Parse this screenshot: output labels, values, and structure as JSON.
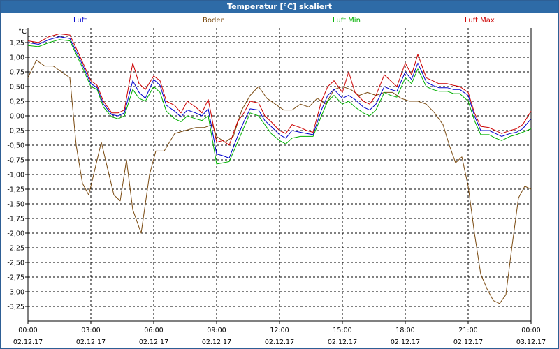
{
  "window": {
    "title": "Temperatur [°C] skaliert"
  },
  "colors": {
    "luft": "#0000cc",
    "boden": "#7a4a10",
    "luft_min": "#00b000",
    "luft_max": "#cc0000",
    "grid": "#000000",
    "title_bg": "#2e6ba7"
  },
  "chart_data": {
    "type": "line",
    "title": "Temperatur [°C] skaliert",
    "ylabel": "°C",
    "xlabel": "",
    "ylim": [
      -3.5,
      1.5
    ],
    "xlim": [
      0,
      24
    ],
    "grid": true,
    "legend_position": "top",
    "y_ticks": [
      1.25,
      1.0,
      0.75,
      0.5,
      0.25,
      0.0,
      -0.25,
      -0.5,
      -0.75,
      -1.0,
      -1.25,
      -1.5,
      -1.75,
      -2.0,
      -2.25,
      -2.5,
      -2.75,
      -3.0,
      -3.25
    ],
    "y_tick_labels": [
      "1,25",
      "1,00",
      "0,75",
      "0,50",
      "0,25",
      "0,00",
      "-0,25",
      "-0,50",
      "-0,75",
      "-1,00",
      "-1,25",
      "-1,50",
      "-1,75",
      "-2,00",
      "-2,25",
      "-2,50",
      "-2,75",
      "-3,00",
      "-3,25"
    ],
    "x_ticks": [
      {
        "hour": 0,
        "time": "00:00",
        "date": "02.12.17"
      },
      {
        "hour": 3,
        "time": "03:00",
        "date": "02.12.17"
      },
      {
        "hour": 6,
        "time": "06:00",
        "date": "02.12.17"
      },
      {
        "hour": 9,
        "time": "09:00",
        "date": "02.12.17"
      },
      {
        "hour": 12,
        "time": "12:00",
        "date": "02.12.17"
      },
      {
        "hour": 15,
        "time": "15:00",
        "date": "02.12.17"
      },
      {
        "hour": 18,
        "time": "18:00",
        "date": "02.12.17"
      },
      {
        "hour": 21,
        "time": "21:00",
        "date": "02.12.17"
      },
      {
        "hour": 24,
        "time": "00:00",
        "date": "03.12.17"
      }
    ],
    "series": [
      {
        "name": "Luft",
        "key": "luft",
        "x": [
          0,
          0.5,
          1,
          1.5,
          2,
          2.5,
          3,
          3.3,
          3.6,
          4,
          4.3,
          4.6,
          5,
          5.3,
          5.6,
          6,
          6.3,
          6.6,
          7,
          7.3,
          7.6,
          8,
          8.3,
          8.6,
          9,
          9.3,
          9.6,
          10,
          10.3,
          10.6,
          11,
          11.3,
          11.6,
          12,
          12.3,
          12.6,
          13,
          13.3,
          13.6,
          14,
          14.3,
          14.6,
          15,
          15.3,
          15.6,
          16,
          16.3,
          16.6,
          17,
          17.3,
          17.6,
          18,
          18.3,
          18.6,
          19,
          19.3,
          19.6,
          20,
          20.3,
          20.6,
          21,
          21.3,
          21.6,
          22,
          22.3,
          22.6,
          23,
          23.3,
          23.6,
          24
        ],
        "y": [
          1.25,
          1.22,
          1.3,
          1.35,
          1.32,
          0.95,
          0.55,
          0.48,
          0.2,
          0.02,
          0.0,
          0.05,
          0.6,
          0.4,
          0.3,
          0.62,
          0.52,
          0.18,
          0.08,
          -0.02,
          0.1,
          0.05,
          0.0,
          0.12,
          -0.65,
          -0.68,
          -0.72,
          -0.35,
          -0.1,
          0.12,
          0.1,
          -0.08,
          -0.18,
          -0.32,
          -0.38,
          -0.25,
          -0.28,
          -0.3,
          -0.32,
          0.1,
          0.35,
          0.45,
          0.3,
          0.35,
          0.28,
          0.15,
          0.1,
          0.2,
          0.5,
          0.45,
          0.42,
          0.75,
          0.62,
          0.9,
          0.58,
          0.52,
          0.48,
          0.48,
          0.45,
          0.45,
          0.35,
          0.0,
          -0.25,
          -0.25,
          -0.3,
          -0.35,
          -0.3,
          -0.28,
          -0.22,
          -0.05
        ]
      },
      {
        "name": "Boden",
        "key": "boden",
        "x": [
          0,
          0.4,
          0.8,
          1.2,
          1.6,
          2,
          2.3,
          2.6,
          2.9,
          3.2,
          3.5,
          3.8,
          4.1,
          4.4,
          4.7,
          5,
          5.4,
          5.8,
          6.1,
          6.5,
          7,
          7.5,
          8,
          8.4,
          8.8,
          9,
          9.4,
          9.8,
          10.2,
          10.6,
          11,
          11.4,
          11.8,
          12.2,
          12.6,
          13,
          13.4,
          13.8,
          14.2,
          14.6,
          15,
          15.4,
          15.8,
          16.2,
          16.6,
          17,
          17.4,
          17.8,
          18.2,
          18.6,
          19,
          19.4,
          19.8,
          20.1,
          20.4,
          20.7,
          21,
          21.3,
          21.6,
          21.9,
          22.2,
          22.5,
          22.8,
          23.1,
          23.4,
          23.7,
          24
        ],
        "y": [
          0.65,
          0.95,
          0.85,
          0.85,
          0.75,
          0.65,
          -0.5,
          -1.15,
          -1.35,
          -0.9,
          -0.45,
          -0.9,
          -1.35,
          -1.45,
          -0.75,
          -1.6,
          -2.0,
          -1.0,
          -0.6,
          -0.6,
          -0.3,
          -0.25,
          -0.2,
          -0.2,
          -0.15,
          -0.35,
          -0.45,
          -0.35,
          0.1,
          0.35,
          0.5,
          0.3,
          0.2,
          0.1,
          0.1,
          0.2,
          0.15,
          0.3,
          0.2,
          0.45,
          0.5,
          0.45,
          0.35,
          0.4,
          0.35,
          0.4,
          0.4,
          0.3,
          0.25,
          0.25,
          0.2,
          0.05,
          -0.15,
          -0.5,
          -0.8,
          -0.7,
          -1.2,
          -2.0,
          -2.7,
          -2.95,
          -3.15,
          -3.2,
          -3.05,
          -2.2,
          -1.4,
          -1.2,
          -1.25
        ]
      },
      {
        "name": "Luft Min",
        "key": "luft_min",
        "x": [
          0,
          0.5,
          1,
          1.5,
          2,
          2.5,
          3,
          3.3,
          3.6,
          4,
          4.3,
          4.6,
          5,
          5.3,
          5.6,
          6,
          6.3,
          6.6,
          7,
          7.3,
          7.6,
          8,
          8.3,
          8.6,
          9,
          9.3,
          9.6,
          10,
          10.3,
          10.6,
          11,
          11.3,
          11.6,
          12,
          12.3,
          12.6,
          13,
          13.3,
          13.6,
          14,
          14.3,
          14.6,
          15,
          15.3,
          15.6,
          16,
          16.3,
          16.6,
          17,
          17.3,
          17.6,
          18,
          18.3,
          18.6,
          19,
          19.3,
          19.6,
          20,
          20.3,
          20.6,
          21,
          21.3,
          21.6,
          22,
          22.3,
          22.6,
          23,
          23.3,
          23.6,
          24
        ],
        "y": [
          1.2,
          1.18,
          1.25,
          1.3,
          1.28,
          0.9,
          0.5,
          0.45,
          0.15,
          -0.02,
          -0.05,
          0.0,
          0.45,
          0.3,
          0.25,
          0.5,
          0.4,
          0.08,
          -0.05,
          -0.1,
          0.0,
          -0.05,
          -0.08,
          0.0,
          -0.82,
          -0.8,
          -0.78,
          -0.45,
          -0.2,
          0.05,
          0.0,
          -0.15,
          -0.3,
          -0.42,
          -0.48,
          -0.38,
          -0.35,
          -0.35,
          -0.35,
          0.0,
          0.25,
          0.35,
          0.2,
          0.25,
          0.15,
          0.05,
          0.0,
          0.1,
          0.4,
          0.35,
          0.32,
          0.65,
          0.55,
          0.8,
          0.5,
          0.45,
          0.42,
          0.42,
          0.38,
          0.38,
          0.25,
          -0.08,
          -0.32,
          -0.32,
          -0.38,
          -0.42,
          -0.35,
          -0.32,
          -0.28,
          -0.22
        ]
      },
      {
        "name": "Luft Max",
        "key": "luft_max",
        "x": [
          0,
          0.5,
          1,
          1.5,
          2,
          2.5,
          3,
          3.3,
          3.6,
          4,
          4.3,
          4.6,
          5,
          5.3,
          5.6,
          6,
          6.3,
          6.6,
          7,
          7.3,
          7.6,
          8,
          8.3,
          8.6,
          9,
          9.3,
          9.6,
          10,
          10.3,
          10.6,
          11,
          11.3,
          11.6,
          12,
          12.3,
          12.6,
          13,
          13.3,
          13.6,
          14,
          14.3,
          14.6,
          15,
          15.3,
          15.6,
          16,
          16.3,
          16.6,
          17,
          17.3,
          17.6,
          18,
          18.3,
          18.6,
          19,
          19.3,
          19.6,
          20,
          20.3,
          20.6,
          21,
          21.3,
          21.6,
          22,
          22.3,
          22.6,
          23,
          23.3,
          23.6,
          24
        ],
        "y": [
          1.28,
          1.25,
          1.35,
          1.4,
          1.38,
          1.0,
          0.6,
          0.52,
          0.25,
          0.05,
          0.05,
          0.1,
          0.9,
          0.55,
          0.45,
          0.68,
          0.6,
          0.25,
          0.18,
          0.05,
          0.25,
          0.15,
          0.05,
          0.28,
          -0.45,
          -0.42,
          -0.5,
          -0.1,
          0.05,
          0.25,
          0.22,
          0.0,
          -0.1,
          -0.25,
          -0.3,
          -0.15,
          -0.2,
          -0.25,
          -0.28,
          0.25,
          0.5,
          0.6,
          0.4,
          0.75,
          0.4,
          0.25,
          0.2,
          0.35,
          0.7,
          0.6,
          0.5,
          0.9,
          0.7,
          1.05,
          0.65,
          0.6,
          0.55,
          0.55,
          0.52,
          0.5,
          0.4,
          0.05,
          -0.18,
          -0.2,
          -0.25,
          -0.3,
          -0.25,
          -0.22,
          -0.15,
          0.08
        ]
      }
    ]
  }
}
